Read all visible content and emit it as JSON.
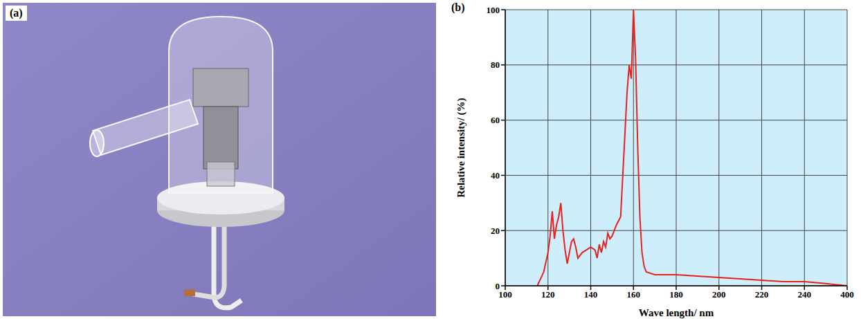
{
  "panel_labels": [
    "(a)",
    "(b)"
  ],
  "chart_data": {
    "type": "line",
    "x_label": "Wave length/ nm",
    "y_label": "Relative intensity/ (%)",
    "x": [
      115,
      118,
      120,
      121,
      122,
      123,
      124,
      125,
      126,
      127,
      128,
      129,
      130,
      131,
      132,
      133,
      134,
      136,
      138,
      140,
      142,
      143,
      144,
      145,
      146,
      147,
      148,
      149,
      150,
      152,
      154,
      155,
      156,
      157,
      158,
      159,
      160,
      161,
      162,
      163,
      164,
      165,
      166,
      170,
      180,
      190,
      200,
      210,
      220,
      230,
      240,
      300,
      400
    ],
    "values": [
      0,
      5,
      12,
      18,
      27,
      17,
      22,
      25,
      30,
      20,
      13,
      8,
      12,
      16,
      17,
      14,
      10,
      12,
      13,
      14,
      13,
      10,
      15,
      12,
      16,
      14,
      19,
      17,
      18,
      22,
      25,
      40,
      55,
      70,
      80,
      75,
      100,
      82,
      50,
      25,
      12,
      7,
      5,
      4,
      4,
      3.5,
      3,
      2.5,
      2,
      1.5,
      1.5,
      1,
      0
    ],
    "color": "#e8201c",
    "xlim": [
      100,
      400
    ],
    "xticks": [
      100,
      120,
      140,
      160,
      180,
      200,
      220,
      240,
      400
    ],
    "ylim": [
      0,
      100
    ],
    "yticks": [
      0,
      20,
      40,
      60,
      80,
      100
    ],
    "grid": true
  }
}
